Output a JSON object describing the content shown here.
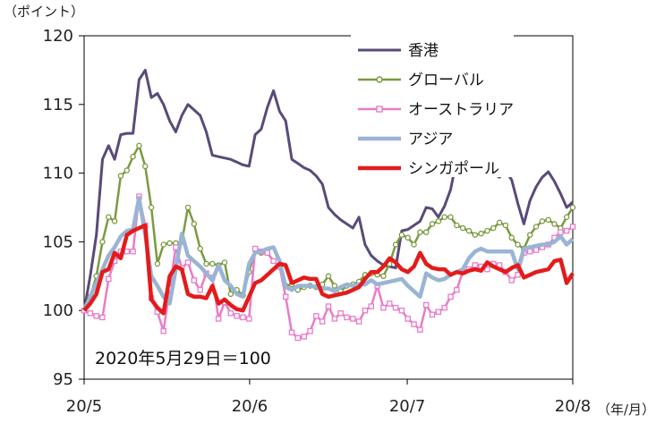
{
  "chart_data": {
    "type": "line",
    "ylabel_unit": "（ポイント）",
    "xlabel_unit": "（年/月）",
    "annotation": "2020年5月29日＝100",
    "ylim": [
      95,
      120
    ],
    "yticks": [
      95,
      100,
      105,
      110,
      115,
      120
    ],
    "xlim": [
      0,
      62
    ],
    "xticks": [
      {
        "x": 0,
        "label": "20/5"
      },
      {
        "x": 21,
        "label": "20/6"
      },
      {
        "x": 41,
        "label": "20/7"
      },
      {
        "x": 62,
        "label": "20/8"
      }
    ],
    "legend_position": "top-right",
    "series": [
      {
        "name": "香港",
        "color": "#5a4a7a",
        "width": 3,
        "marker": "none",
        "values": [
          100.0,
          102.5,
          105.5,
          111.0,
          112.0,
          111.0,
          112.8,
          112.9,
          112.9,
          116.8,
          117.5,
          115.5,
          115.8,
          115.0,
          113.8,
          113.0,
          114.2,
          115.0,
          114.6,
          114.2,
          113.0,
          111.3,
          111.2,
          111.1,
          111.0,
          110.8,
          110.6,
          110.5,
          112.8,
          113.2,
          114.8,
          116.0,
          114.5,
          113.8,
          111.0,
          110.7,
          110.4,
          110.2,
          109.8,
          109.2,
          107.5,
          107.0,
          106.6,
          106.3,
          106.0,
          106.8,
          104.8,
          104.0,
          103.6,
          103.3,
          103.2,
          103.1,
          105.8,
          105.9,
          106.2,
          106.5,
          107.5,
          107.4,
          106.8,
          107.6,
          108.8,
          111.0,
          112.0,
          112.5,
          111.8,
          111.0,
          110.5,
          110.0,
          109.7,
          110.2,
          109.5,
          107.8,
          106.3,
          108.0,
          109.0,
          109.7,
          110.1,
          109.4,
          108.5,
          107.5,
          107.9
        ]
      },
      {
        "name": "グローバル",
        "color": "#7a9a40",
        "width": 2.5,
        "marker": "circle",
        "values": [
          100.0,
          101.0,
          102.5,
          105.0,
          106.8,
          106.5,
          109.8,
          110.2,
          111.2,
          112.0,
          110.5,
          107.5,
          103.4,
          104.8,
          104.9,
          104.9,
          105.0,
          107.5,
          106.3,
          104.5,
          103.4,
          103.4,
          103.3,
          103.5,
          101.2,
          101.5,
          101.1,
          102.8,
          104.4,
          104.2,
          104.2,
          103.6,
          103.2,
          101.8,
          101.9,
          101.5,
          101.7,
          101.8,
          101.7,
          101.9,
          102.5,
          101.8,
          101.4,
          101.8,
          101.9,
          102.1,
          102.6,
          102.7,
          102.6,
          102.5,
          103.4,
          104.8,
          105.5,
          105.3,
          104.8,
          105.7,
          105.7,
          106.3,
          106.5,
          106.8,
          106.8,
          106.2,
          106.0,
          105.8,
          105.5,
          105.6,
          105.8,
          106.0,
          106.4,
          106.2,
          105.3,
          104.8,
          104.5,
          105.5,
          106.1,
          106.5,
          106.6,
          106.3,
          106.0,
          106.8,
          107.5
        ]
      },
      {
        "name": "オーストラリア",
        "color": "#e87cc8",
        "width": 2.5,
        "marker": "square",
        "values": [
          100.0,
          99.8,
          99.6,
          99.5,
          102.3,
          103.6,
          104.3,
          104.3,
          104.3,
          108.3,
          106.2,
          100.9,
          99.9,
          98.5,
          101.6,
          104.6,
          103.1,
          103.5,
          102.2,
          101.5,
          102.7,
          102.4,
          99.4,
          100.6,
          99.8,
          99.6,
          99.5,
          99.4,
          104.5,
          104.3,
          104.2,
          103.6,
          103.2,
          101.0,
          98.4,
          98.0,
          98.1,
          98.5,
          99.6,
          99.2,
          100.3,
          99.4,
          99.8,
          99.5,
          99.4,
          99.2,
          100.0,
          100.3,
          101.8,
          100.2,
          100.5,
          100.2,
          100.0,
          99.4,
          99.0,
          98.6,
          100.4,
          99.7,
          99.9,
          100.2,
          101.0,
          101.5,
          102.8,
          103.0,
          103.3,
          103.2,
          103.0,
          103.4,
          103.3,
          102.8,
          102.2,
          102.6,
          104.2,
          104.3,
          104.4,
          104.6,
          104.8,
          105.3,
          105.7,
          105.8,
          106.1
        ]
      },
      {
        "name": "アジア",
        "color": "#9ab4d4",
        "width": 4.5,
        "marker": "none",
        "values": [
          100.0,
          101.0,
          102.0,
          103.0,
          104.0,
          104.6,
          105.4,
          105.8,
          105.9,
          108.2,
          105.5,
          102.5,
          101.8,
          101.0,
          100.5,
          103.0,
          105.6,
          104.0,
          103.6,
          103.2,
          102.7,
          102.2,
          103.3,
          102.2,
          101.8,
          101.2,
          101.0,
          103.4,
          104.2,
          104.3,
          104.5,
          104.6,
          103.6,
          101.7,
          101.5,
          101.8,
          101.8,
          101.8,
          101.7,
          101.6,
          101.6,
          101.4,
          101.7,
          101.9,
          101.8,
          101.9,
          101.9,
          102.2,
          101.9,
          102.0,
          102.1,
          102.2,
          102.3,
          101.8,
          101.4,
          101.0,
          102.7,
          102.4,
          102.2,
          102.3,
          102.6,
          102.8,
          103.0,
          103.8,
          104.3,
          104.5,
          104.3,
          104.3,
          104.3,
          104.3,
          104.3,
          103.0,
          104.5,
          104.6,
          104.7,
          104.8,
          104.8,
          105.0,
          105.4,
          104.8,
          105.2
        ]
      },
      {
        "name": "シンガポール",
        "color": "#e31b1b",
        "width": 4.5,
        "marker": "none",
        "values": [
          100.0,
          100.5,
          101.2,
          102.8,
          103.0,
          104.2,
          103.8,
          105.5,
          105.8,
          106.0,
          106.2,
          100.8,
          100.2,
          99.8,
          102.5,
          103.2,
          103.0,
          101.2,
          101.0,
          101.0,
          100.9,
          101.8,
          100.5,
          100.8,
          100.4,
          100.1,
          100.0,
          101.0,
          102.0,
          102.2,
          102.6,
          103.0,
          103.4,
          103.3,
          102.0,
          102.2,
          102.4,
          102.3,
          102.3,
          101.2,
          101.0,
          101.1,
          101.2,
          101.3,
          101.5,
          101.7,
          102.3,
          102.8,
          102.8,
          103.2,
          103.8,
          103.5,
          103.0,
          102.8,
          103.2,
          104.2,
          103.4,
          103.1,
          103.0,
          103.0,
          102.6,
          102.8,
          102.7,
          102.9,
          103.0,
          102.9,
          103.5,
          103.2,
          103.0,
          102.8,
          103.1,
          103.3,
          102.4,
          102.6,
          102.8,
          102.9,
          103.0,
          103.6,
          103.7,
          102.0,
          102.7
        ]
      }
    ]
  }
}
